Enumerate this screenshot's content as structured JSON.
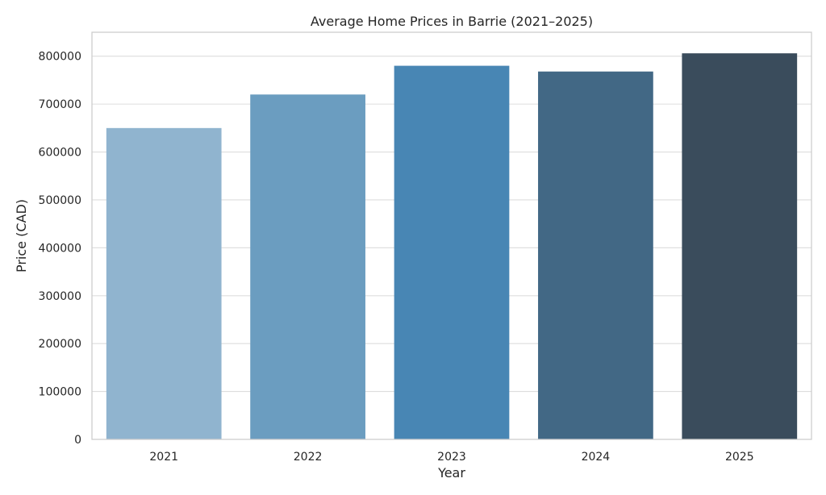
{
  "chart_data": {
    "type": "bar",
    "title": "Average Home Prices in Barrie (2021–2025)",
    "xlabel": "Year",
    "ylabel": "Price (CAD)",
    "categories": [
      "2021",
      "2022",
      "2023",
      "2024",
      "2025"
    ],
    "values": [
      650000,
      720000,
      780000,
      768000,
      806000
    ],
    "ylim": [
      0,
      850000
    ],
    "yticks": [
      0,
      100000,
      200000,
      300000,
      400000,
      500000,
      600000,
      700000,
      800000
    ],
    "ytick_labels": [
      "0",
      "100000",
      "200000",
      "300000",
      "400000",
      "500000",
      "600000",
      "700000",
      "800000"
    ],
    "grid": true,
    "colors": [
      "#90b4cf",
      "#6b9dc0",
      "#4886b4",
      "#426885",
      "#3a4c5c"
    ]
  }
}
